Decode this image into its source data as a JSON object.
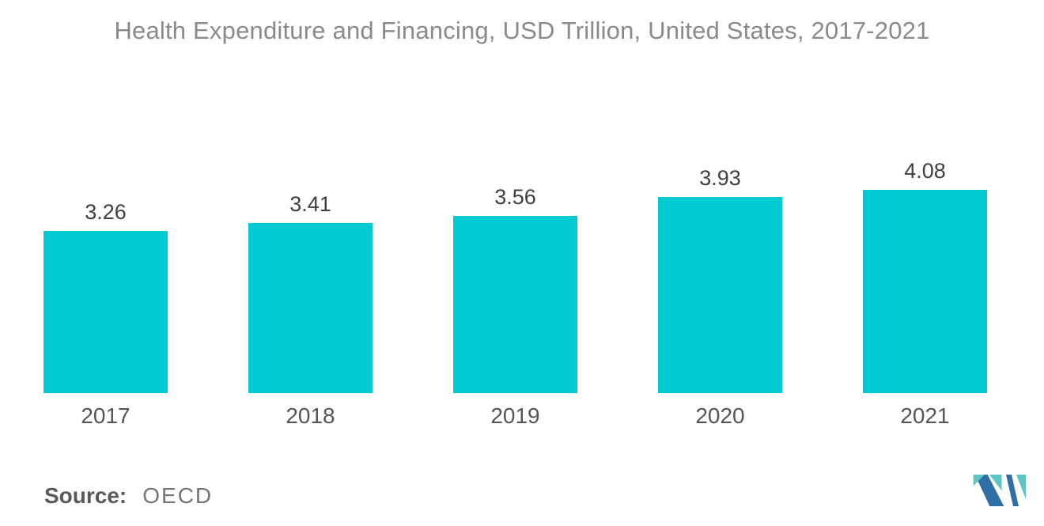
{
  "chart_data": {
    "type": "bar",
    "title": "Health Expenditure and Financing, USD Trillion, United States, 2017-2021",
    "categories": [
      "2017",
      "2018",
      "2019",
      "2020",
      "2021"
    ],
    "values": [
      3.26,
      3.41,
      3.56,
      3.93,
      4.08
    ],
    "value_labels": [
      "3.26",
      "3.41",
      "3.56",
      "3.93",
      "4.08"
    ],
    "xlabel": "",
    "ylabel": "",
    "ylim": [
      0,
      4.5
    ],
    "grid": false,
    "legend": false,
    "axes_visible": false,
    "bar_color": "#00CBD2",
    "value_label_color": "#3F3F3F",
    "axis_label_color": "#555555",
    "title_color": "#8A8A8A",
    "background": "#FFFFFF"
  },
  "footer": {
    "source_label": "Source:",
    "source_value": "OECD",
    "source_label_color": "#595959",
    "source_value_color": "#757575"
  },
  "logo": {
    "name": "mordor-intelligence-logo",
    "blue": "#2F6EA7",
    "teal": "#5CC6C3"
  }
}
